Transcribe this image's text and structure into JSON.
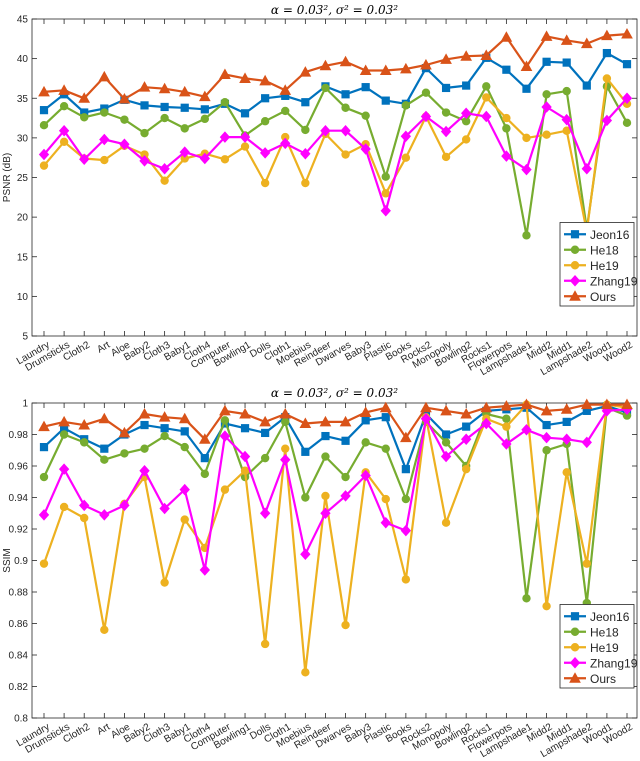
{
  "chart_data": [
    {
      "type": "line",
      "title": "α = 0.03², σ² = 0.03²",
      "ylabel": "PSNR (dB)",
      "xlabel": "",
      "ylim": [
        5,
        45
      ],
      "yticks": [
        5,
        10,
        15,
        20,
        25,
        30,
        35,
        40,
        45
      ],
      "ytick_labels": [
        "5",
        "10",
        "15",
        "20",
        "25",
        "30",
        "35",
        "40",
        "45"
      ],
      "grid": false,
      "legend": "bottom-right",
      "categories": [
        "Laundry",
        "Drumsticks",
        "Cloth2",
        "Art",
        "Aloe",
        "Baby2",
        "Cloth3",
        "Baby1",
        "Cloth4",
        "Computer",
        "Bowling1",
        "Dolls",
        "Cloth1",
        "Moebius",
        "Reindeer",
        "Dwarves",
        "Baby3",
        "Plastic",
        "Books",
        "Rocks2",
        "Monopoly",
        "Bowling2",
        "Rocks1",
        "Flowerpots",
        "Lampshade1",
        "Midd2",
        "Midd1",
        "Lampshade2",
        "Wood1",
        "Wood2"
      ],
      "series": [
        {
          "name": "Jeon16",
          "color": "#0072BD",
          "marker": "square",
          "values": [
            33.5,
            35.5,
            33.2,
            33.7,
            34.8,
            34.1,
            33.9,
            33.8,
            33.6,
            34.3,
            33.1,
            35.0,
            35.3,
            34.5,
            36.5,
            35.5,
            36.4,
            34.7,
            34.3,
            38.8,
            36.3,
            36.6,
            40.1,
            38.6,
            36.2,
            39.6,
            39.5,
            36.6,
            40.7,
            39.3
          ]
        },
        {
          "name": "He18",
          "color": "#77AC30",
          "marker": "circle",
          "values": [
            31.6,
            34.0,
            32.6,
            33.2,
            32.3,
            30.6,
            32.5,
            31.2,
            32.4,
            34.5,
            30.3,
            32.1,
            33.4,
            31.0,
            36.3,
            33.8,
            32.8,
            25.1,
            34.1,
            35.7,
            33.2,
            32.1,
            36.5,
            31.2,
            17.7,
            35.5,
            35.9,
            18.5,
            36.5,
            31.9
          ]
        },
        {
          "name": "He19",
          "color": "#EDB120",
          "marker": "circle",
          "values": [
            26.5,
            29.5,
            27.4,
            27.2,
            29.0,
            27.9,
            24.6,
            27.4,
            28.0,
            27.3,
            28.9,
            24.3,
            30.1,
            24.3,
            30.5,
            27.9,
            29.2,
            23.0,
            27.5,
            32.7,
            27.6,
            29.8,
            35.1,
            32.5,
            30.0,
            30.4,
            30.9,
            18.2,
            37.5,
            34.3
          ]
        },
        {
          "name": "Zhang19",
          "color": "#FF00FF",
          "marker": "diamond",
          "values": [
            27.9,
            30.9,
            27.3,
            29.8,
            29.2,
            27.1,
            26.1,
            28.2,
            27.4,
            30.1,
            30.1,
            28.1,
            29.3,
            28.0,
            30.9,
            30.9,
            28.6,
            20.8,
            30.2,
            32.7,
            30.8,
            33.1,
            32.7,
            27.7,
            26.0,
            33.9,
            32.3,
            26.1,
            32.2,
            35.0
          ]
        },
        {
          "name": "Ours",
          "color": "#D95319",
          "marker": "triangle",
          "values": [
            35.8,
            36.0,
            35.0,
            37.7,
            34.9,
            36.4,
            36.2,
            35.8,
            35.2,
            38.0,
            37.5,
            37.2,
            36.0,
            38.3,
            39.1,
            39.6,
            38.5,
            38.5,
            38.7,
            39.2,
            39.9,
            40.3,
            40.4,
            42.7,
            39.0,
            42.8,
            42.3,
            41.9,
            42.9,
            43.1
          ]
        }
      ]
    },
    {
      "type": "line",
      "title": "α = 0.03², σ² = 0.03²",
      "ylabel": "SSIM",
      "xlabel": "",
      "ylim": [
        0.8,
        1.0
      ],
      "yticks": [
        0.8,
        0.82,
        0.84,
        0.86,
        0.88,
        0.9,
        0.92,
        0.94,
        0.96,
        0.98,
        1.0
      ],
      "ytick_labels": [
        "0.8",
        "0.82",
        "0.84",
        "0.86",
        "0.88",
        "0.9",
        "0.92",
        "0.94",
        "0.96",
        "0.98",
        "1"
      ],
      "grid": false,
      "legend": "bottom-right",
      "categories": [
        "Laundry",
        "Drumsticks",
        "Cloth2",
        "Art",
        "Aloe",
        "Baby2",
        "Cloth3",
        "Baby1",
        "Cloth4",
        "Computer",
        "Bowling1",
        "Dolls",
        "Cloth1",
        "Moebius",
        "Reindeer",
        "Dwarves",
        "Baby3",
        "Plastic",
        "Books",
        "Rocks2",
        "Monopoly",
        "Bowling2",
        "Rocks1",
        "Flowerpots",
        "Lampshade1",
        "Midd2",
        "Midd1",
        "Lampshade2",
        "Wood1",
        "Wood2"
      ],
      "series": [
        {
          "name": "Jeon16",
          "color": "#0072BD",
          "marker": "square",
          "values": [
            0.972,
            0.984,
            0.977,
            0.971,
            0.98,
            0.986,
            0.984,
            0.982,
            0.965,
            0.987,
            0.984,
            0.981,
            0.991,
            0.969,
            0.979,
            0.976,
            0.989,
            0.991,
            0.958,
            0.993,
            0.98,
            0.985,
            0.995,
            0.996,
            0.997,
            0.986,
            0.988,
            0.995,
            0.998,
            0.994
          ]
        },
        {
          "name": "He18",
          "color": "#77AC30",
          "marker": "circle",
          "values": [
            0.953,
            0.98,
            0.975,
            0.964,
            0.968,
            0.971,
            0.979,
            0.972,
            0.955,
            0.989,
            0.953,
            0.965,
            0.988,
            0.94,
            0.966,
            0.953,
            0.975,
            0.971,
            0.939,
            0.988,
            0.975,
            0.96,
            0.993,
            0.99,
            0.876,
            0.97,
            0.974,
            0.873,
            0.997,
            0.992
          ]
        },
        {
          "name": "He19",
          "color": "#EDB120",
          "marker": "circle",
          "values": [
            0.898,
            0.934,
            0.927,
            0.856,
            0.936,
            0.953,
            0.886,
            0.926,
            0.908,
            0.945,
            0.957,
            0.847,
            0.971,
            0.829,
            0.941,
            0.859,
            0.956,
            0.939,
            0.888,
            0.991,
            0.924,
            0.958,
            0.99,
            0.985,
            0.999,
            0.871,
            0.956,
            0.898,
            0.999,
            0.997
          ]
        },
        {
          "name": "Zhang19",
          "color": "#FF00FF",
          "marker": "diamond",
          "values": [
            0.929,
            0.958,
            0.935,
            0.929,
            0.935,
            0.957,
            0.933,
            0.945,
            0.894,
            0.979,
            0.966,
            0.93,
            0.964,
            0.904,
            0.93,
            0.941,
            0.954,
            0.924,
            0.919,
            0.99,
            0.966,
            0.977,
            0.987,
            0.974,
            0.983,
            0.978,
            0.977,
            0.975,
            0.995,
            0.996
          ]
        },
        {
          "name": "Ours",
          "color": "#D95319",
          "marker": "triangle",
          "values": [
            0.985,
            0.988,
            0.986,
            0.99,
            0.981,
            0.993,
            0.991,
            0.99,
            0.977,
            0.995,
            0.993,
            0.988,
            0.993,
            0.987,
            0.988,
            0.988,
            0.994,
            0.997,
            0.978,
            0.997,
            0.995,
            0.993,
            0.997,
            0.998,
            0.999,
            0.995,
            0.996,
            0.999,
            0.999,
            0.999
          ]
        }
      ]
    }
  ]
}
